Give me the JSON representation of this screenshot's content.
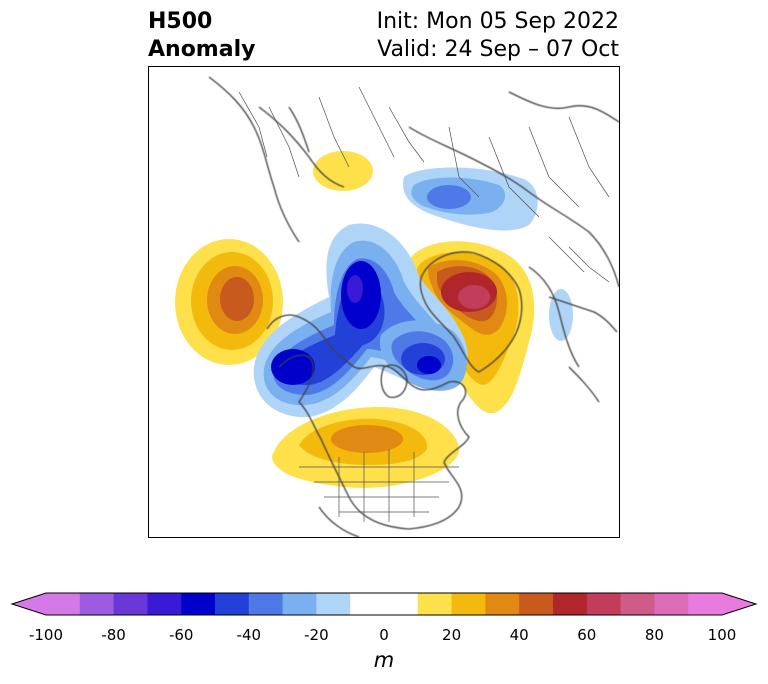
{
  "header": {
    "variable_line1": "H500",
    "variable_line2": "Anomaly",
    "init_text": "Init: Mon 05 Sep 2022",
    "valid_text": "Valid: 24 Sep – 07 Oct"
  },
  "map": {
    "projection": "north-polar-stereographic",
    "anomaly_features": [
      {
        "feature": "Gulf of Alaska ridge",
        "sign": "positive",
        "peak": 50
      },
      {
        "feature": "Greenland / NE Atlantic ridge",
        "sign": "positive",
        "peak": 70
      },
      {
        "feature": "Eastern US / Great Lakes ridge",
        "sign": "positive",
        "peak": 40
      },
      {
        "feature": "Siberian Arctic ridge",
        "sign": "positive",
        "peak": 20
      },
      {
        "feature": "Canadian Arctic trough",
        "sign": "negative",
        "peak": -60
      },
      {
        "feature": "Western Canada trough",
        "sign": "negative",
        "peak": -60
      },
      {
        "feature": "Hudson Bay / Labrador trough",
        "sign": "negative",
        "peak": -60
      },
      {
        "feature": "Arctic Russia trough",
        "sign": "negative",
        "peak": -30
      }
    ]
  },
  "colorbar": {
    "unit": "m",
    "ticks": [
      "-100",
      "-80",
      "-60",
      "-40",
      "-20",
      "0",
      "20",
      "40",
      "60",
      "80",
      "100"
    ],
    "levels": [
      -100,
      -90,
      -80,
      -70,
      -60,
      -50,
      -40,
      -30,
      -20,
      -10,
      10,
      20,
      30,
      40,
      50,
      60,
      70,
      80,
      90,
      100
    ],
    "colors": [
      "#d47ae8",
      "#9c5be0",
      "#6a38d8",
      "#3a1ad6",
      "#0000cd",
      "#2341d9",
      "#4f79e6",
      "#7aaff0",
      "#aed5f7",
      "#ffffff",
      "#fee04a",
      "#f3b90c",
      "#e18a13",
      "#c75a1c",
      "#b0262b",
      "#c23d5a",
      "#d05a88",
      "#db6cb8",
      "#e97ade"
    ],
    "under_color": "#d47ae8",
    "over_color": "#e97ade"
  }
}
